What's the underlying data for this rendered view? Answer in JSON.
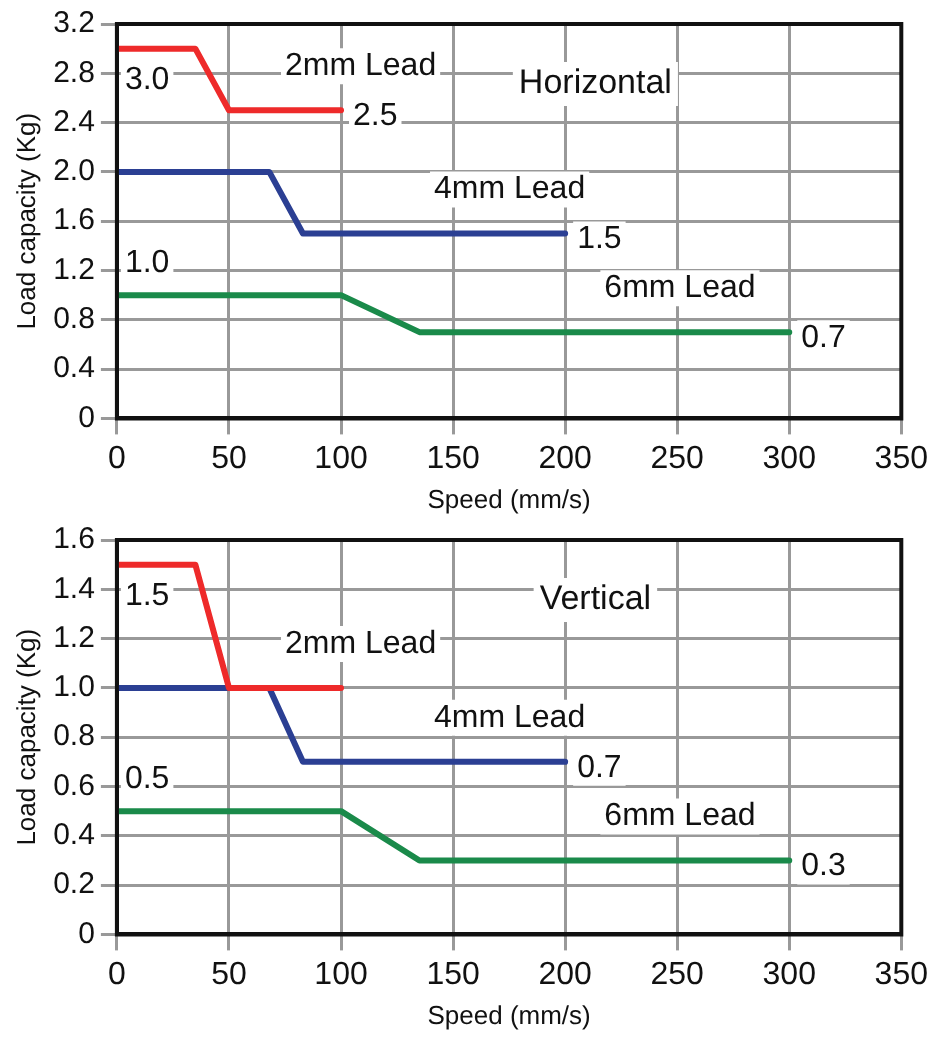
{
  "chart_data": [
    {
      "type": "line",
      "title": "Horizontal",
      "xlabel": "Speed (mm/s)",
      "ylabel": "Load capacity (Kg)",
      "xlim": [
        0,
        350
      ],
      "xticks": [
        0,
        50,
        100,
        150,
        200,
        250,
        300,
        350
      ],
      "ylim": [
        0,
        3.2
      ],
      "yticks": [
        0,
        0.4,
        0.8,
        1.2,
        1.6,
        {
          "value": 2,
          "label": "2.0"
        },
        2.4,
        2.8,
        3.2
      ],
      "grid": true,
      "legend": false,
      "marker": "none",
      "line_style": "solid",
      "series": [
        {
          "name": "2mm Lead",
          "color": "#ee2a2a",
          "x": [
            0,
            35,
            50,
            100
          ],
          "values": [
            3.0,
            3.0,
            2.5,
            2.5
          ]
        },
        {
          "name": "4mm Lead",
          "color": "#2b3f93",
          "x": [
            0,
            68,
            83,
            200
          ],
          "values": [
            2.0,
            2.0,
            1.5,
            1.5
          ]
        },
        {
          "name": "6mm Lead",
          "color": "#1a8a4a",
          "x": [
            0,
            100,
            135,
            300
          ],
          "values": [
            1.0,
            1.0,
            0.7,
            0.7
          ]
        }
      ],
      "annotations": [
        {
          "text": "3.0",
          "x": 0,
          "y": 3.0
        },
        {
          "text": "2.5",
          "x": 100,
          "y": 2.5
        },
        {
          "text": "1.5",
          "x": 200,
          "y": 1.5
        },
        {
          "text": "1.0",
          "x": 0,
          "y": 1.0
        },
        {
          "text": "0.7",
          "x": 300,
          "y": 0.7
        }
      ]
    },
    {
      "type": "line",
      "title": "Vertical",
      "xlabel": "Speed (mm/s)",
      "ylabel": "Load capacity (Kg)",
      "xlim": [
        0,
        350
      ],
      "xticks": [
        0,
        50,
        100,
        150,
        200,
        250,
        300,
        350
      ],
      "ylim": [
        0,
        1.6
      ],
      "yticks": [
        0,
        0.2,
        0.4,
        0.6,
        0.8,
        {
          "value": 1,
          "label": "1.0"
        },
        1.2,
        1.4,
        1.6
      ],
      "grid": true,
      "legend": false,
      "marker": "none",
      "line_style": "solid",
      "series": [
        {
          "name": "2mm Lead",
          "color": "#ee2a2a",
          "x": [
            0,
            35,
            50,
            100
          ],
          "values": [
            1.5,
            1.5,
            1.0,
            1.0
          ]
        },
        {
          "name": "4mm Lead",
          "color": "#2b3f93",
          "x": [
            0,
            68,
            83,
            200
          ],
          "values": [
            1.0,
            1.0,
            0.7,
            0.7
          ]
        },
        {
          "name": "6mm Lead",
          "color": "#1a8a4a",
          "x": [
            0,
            100,
            135,
            300
          ],
          "values": [
            0.5,
            0.5,
            0.3,
            0.3
          ]
        }
      ],
      "annotations": [
        {
          "text": "1.5",
          "x": 0,
          "y": 1.5
        },
        {
          "text": "0.7",
          "x": 200,
          "y": 0.7
        },
        {
          "text": "0.5",
          "x": 0,
          "y": 0.5
        },
        {
          "text": "0.3",
          "x": 300,
          "y": 0.3
        }
      ]
    }
  ]
}
